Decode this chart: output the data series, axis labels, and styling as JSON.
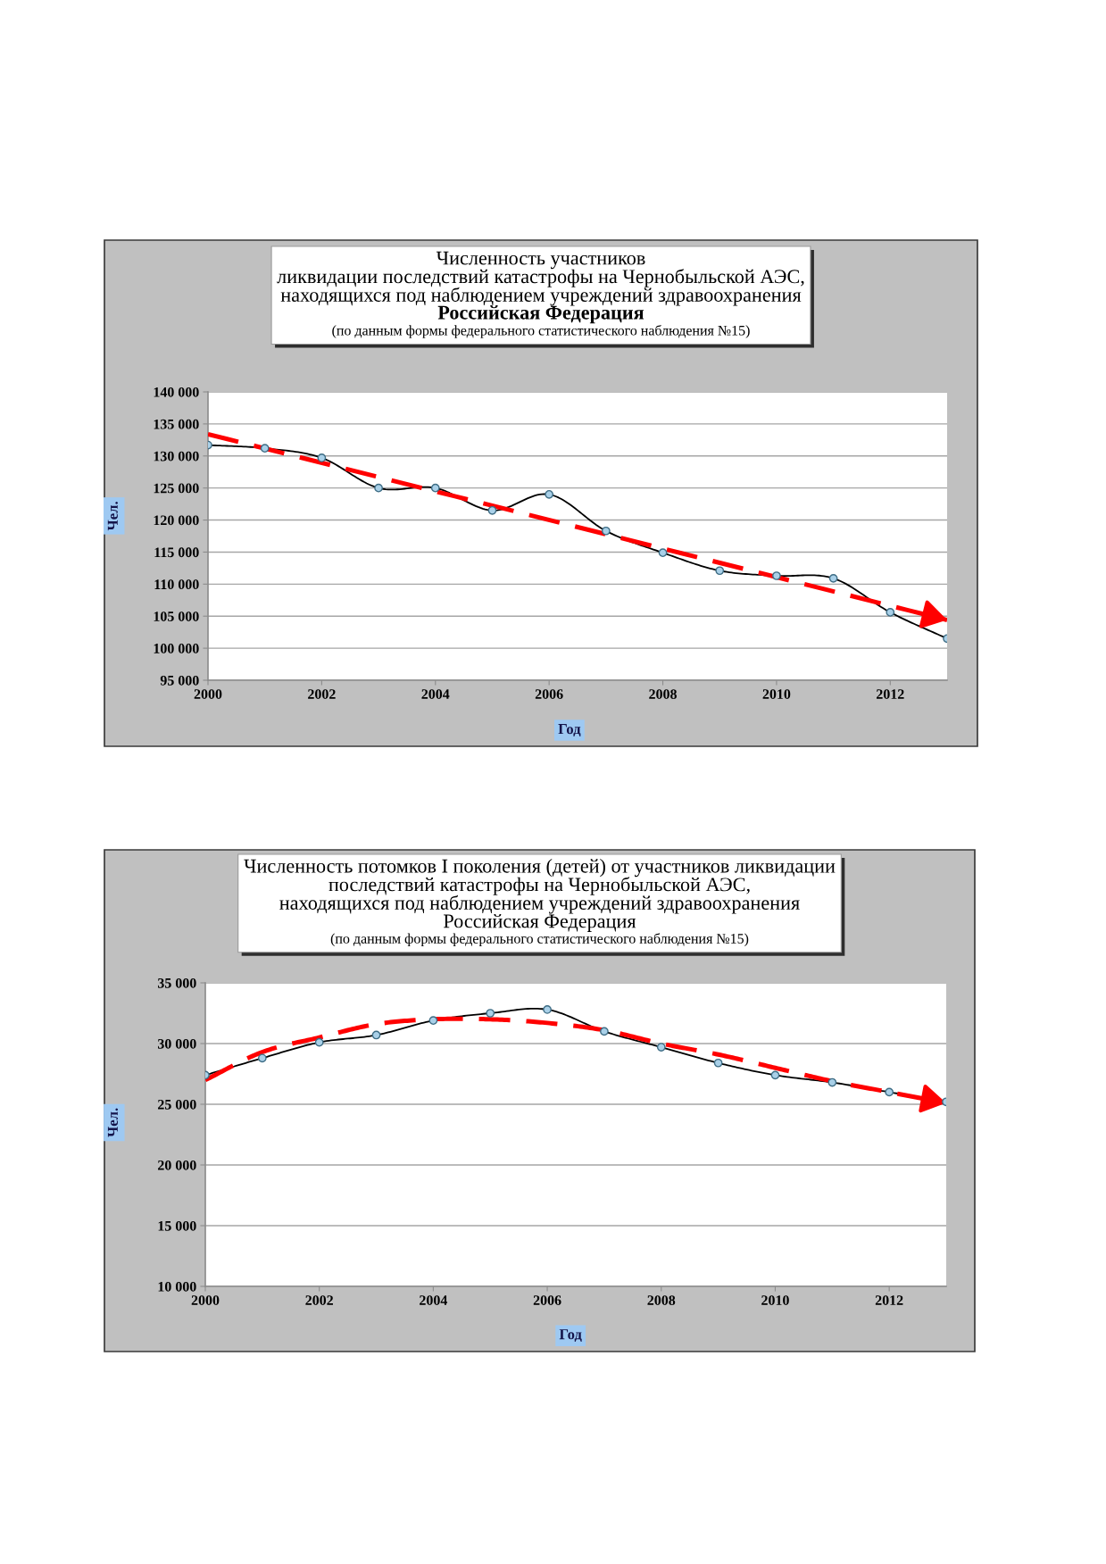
{
  "chart_data": [
    {
      "type": "line",
      "title": "Численность участников\nликвидации последствий катастрофы на Чернобыльской АЭС,\nнаходящихся под наблюдением учреждений здравоохранения",
      "subtitle": "Российская Федерация",
      "annotations": [
        "(по данным формы федерального статистического наблюдения №15)"
      ],
      "xlabel": "Год",
      "ylabel": "Чел.",
      "x": [
        2000,
        2001,
        2002,
        2003,
        2004,
        2005,
        2006,
        2007,
        2008,
        2009,
        2010,
        2011,
        2012,
        2013
      ],
      "series": [
        {
          "color": "#000000",
          "values": [
            131700,
            131200,
            129700,
            125000,
            125000,
            121500,
            124000,
            118300,
            114900,
            112100,
            111300,
            110900,
            105600,
            101500
          ]
        },
        {
          "type": "line",
          "color": "#ff0000",
          "x": [
            2000,
            2013
          ],
          "values": [
            133400,
            104400
          ],
          "marker": "none",
          "line_style": "dashed"
        }
      ],
      "marker": "circle",
      "line_style": "solid",
      "xlim": [
        2000,
        2013
      ],
      "xticks": [
        2000,
        2002,
        2004,
        2006,
        2008,
        2010,
        2012
      ],
      "ylim": [
        95000,
        140000
      ],
      "yticks": [
        {
          "value": 95000,
          "label": "95 000"
        },
        {
          "value": 100000,
          "label": "100 000"
        },
        {
          "value": 105000,
          "label": "105 000"
        },
        {
          "value": 110000,
          "label": "110 000"
        },
        {
          "value": 115000,
          "label": "115 000"
        },
        {
          "value": 120000,
          "label": "120 000"
        },
        {
          "value": 125000,
          "label": "125 000"
        },
        {
          "value": 130000,
          "label": "130 000"
        },
        {
          "value": 135000,
          "label": "135 000"
        },
        {
          "value": 140000,
          "label": "140 000"
        }
      ],
      "grid": "y"
    },
    {
      "type": "line",
      "title": "Численность потомков I поколения (детей) от участников ликвидации\nпоследствий катастрофы на Чернобыльской АЭС,\nнаходящихся под наблюдением учреждений здравоохранения",
      "subtitle": "Российская Федерация",
      "annotations": [
        "(по данным формы федерального статистического наблюдения №15)"
      ],
      "xlabel": "Год",
      "ylabel": "Чел.",
      "x": [
        2000,
        2001,
        2002,
        2003,
        2004,
        2005,
        2006,
        2007,
        2008,
        2009,
        2010,
        2011,
        2012,
        2013
      ],
      "series": [
        {
          "color": "#000000",
          "values": [
            27400,
            28800,
            30100,
            30700,
            31900,
            32500,
            32800,
            31000,
            29700,
            28400,
            27400,
            26800,
            26000,
            25200
          ]
        },
        {
          "type": "line",
          "color": "#ff0000",
          "values": [
            27000,
            29300,
            30500,
            31600,
            32000,
            32000,
            31700,
            31100,
            30000,
            29100,
            28000,
            26900,
            26000,
            25100
          ],
          "marker": "none",
          "line_style": "dashed"
        }
      ],
      "marker": "circle",
      "line_style": "solid",
      "xlim": [
        2000,
        2013
      ],
      "xticks": [
        2000,
        2002,
        2004,
        2006,
        2008,
        2010,
        2012
      ],
      "ylim": [
        10000,
        35000
      ],
      "yticks": [
        {
          "value": 10000,
          "label": "10 000"
        },
        {
          "value": 15000,
          "label": "15 000"
        },
        {
          "value": 20000,
          "label": "20 000"
        },
        {
          "value": 25000,
          "label": "25 000"
        },
        {
          "value": 30000,
          "label": "30 000"
        },
        {
          "value": 35000,
          "label": "35 000"
        }
      ],
      "grid": "y"
    }
  ]
}
